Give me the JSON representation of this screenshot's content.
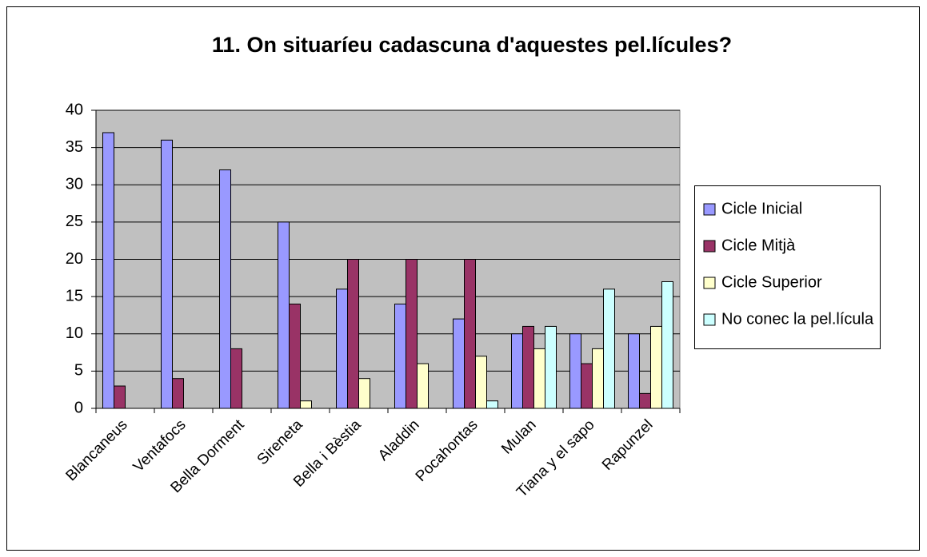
{
  "chart_data": {
    "type": "bar",
    "title": "11. On situaríeu cadascuna d'aquestes pel.lícules?",
    "categories": [
      "Blancaneus",
      "Ventafocs",
      "Bella Dorment",
      "Sireneta",
      "Bella i Bèstia",
      "Aladdin",
      "Pocahontas",
      "Mulan",
      "Tiana y el sapo",
      "Rapunzel"
    ],
    "series": [
      {
        "name": "Cicle Inicial",
        "color": "#9999ff",
        "values": [
          37,
          36,
          32,
          25,
          16,
          14,
          12,
          10,
          10,
          10
        ]
      },
      {
        "name": "Cicle Mitjà",
        "color": "#993366",
        "values": [
          3,
          4,
          8,
          14,
          20,
          20,
          20,
          11,
          6,
          2
        ]
      },
      {
        "name": "Cicle Superior",
        "color": "#ffffcc",
        "values": [
          0,
          0,
          0,
          1,
          4,
          6,
          7,
          8,
          8,
          11
        ]
      },
      {
        "name": "No conec la pel.lícula",
        "color": "#ccffff",
        "values": [
          0,
          0,
          0,
          0,
          0,
          0,
          1,
          11,
          16,
          17
        ]
      }
    ],
    "ylim": [
      0,
      40
    ],
    "yticks": [
      0,
      5,
      10,
      15,
      20,
      25,
      30,
      35,
      40
    ],
    "grid": true,
    "legend": "right"
  }
}
